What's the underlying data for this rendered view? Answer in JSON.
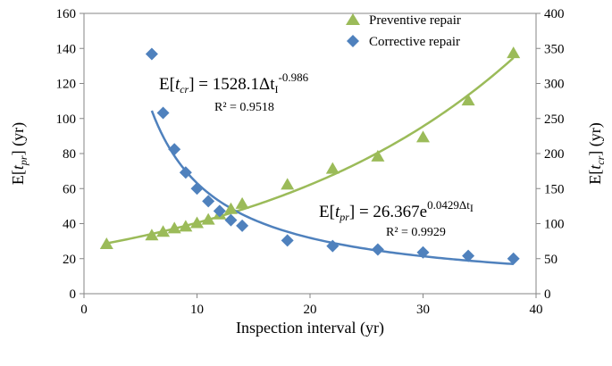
{
  "chart_data": {
    "type": "scatter",
    "xlabel": "Inspection interval (yr)",
    "ylabel_left": {
      "pre": "E[",
      "var": "t",
      "sub": "pr",
      "post": "] (yr)"
    },
    "ylabel_right": {
      "pre": "E[",
      "var": "t",
      "sub": "cr",
      "post": "] (yr)"
    },
    "xlim": [
      0,
      40
    ],
    "xticks": [
      0,
      10,
      20,
      30,
      40
    ],
    "ylim_left": [
      0,
      160
    ],
    "yticks_left": [
      0,
      20,
      40,
      60,
      80,
      100,
      120,
      140,
      160
    ],
    "ylim_right": [
      0,
      400
    ],
    "yticks_right": [
      0,
      50,
      100,
      150,
      200,
      250,
      300,
      350,
      400
    ],
    "grid": false,
    "legend_position": "top-right",
    "series": [
      {
        "name": "Preventive repair",
        "axis": "left",
        "marker": "triangle",
        "color": "#9BBB59",
        "x": [
          2,
          6,
          7,
          8,
          9,
          10,
          11,
          12,
          13,
          14,
          18,
          22,
          26,
          30,
          34,
          38
        ],
        "y": [
          28,
          33,
          35,
          37,
          38,
          40,
          42,
          45,
          48,
          51,
          62,
          71,
          78,
          89,
          110,
          137
        ]
      },
      {
        "name": "Corrective repair",
        "axis": "right",
        "marker": "diamond",
        "color": "#4F81BD",
        "x": [
          6,
          7,
          8,
          9,
          10,
          11,
          12,
          13,
          14,
          18,
          22,
          26,
          30,
          34,
          38
        ],
        "y": [
          342,
          258,
          206,
          173,
          150,
          132,
          118,
          105,
          97,
          76,
          68,
          63,
          59,
          54,
          50
        ]
      }
    ],
    "trendlines": [
      {
        "series": "Preventive repair",
        "kind": "exponential",
        "a": 26.367,
        "b": 0.0429,
        "x_range": [
          2,
          38
        ],
        "color": "#9BBB59"
      },
      {
        "series": "Corrective repair",
        "kind": "power",
        "a": 1528.1,
        "b": -0.986,
        "x_range": [
          6,
          38
        ],
        "color": "#4F81BD"
      }
    ],
    "annotations": {
      "eq_corrective": {
        "pre": "E[",
        "var": "t",
        "sub": "cr",
        "mid": "] = 1528.1Δt",
        "sub2": "I",
        "sup": "-0.986"
      },
      "r2_corrective": "R² = 0.9518",
      "eq_preventive": {
        "pre": "E[",
        "var": "t",
        "sub": "pr",
        "mid": "] = 26.367e",
        "sup": "0.0429Δt",
        "supsub": "I"
      },
      "r2_preventive": "R² = 0.9929"
    }
  }
}
